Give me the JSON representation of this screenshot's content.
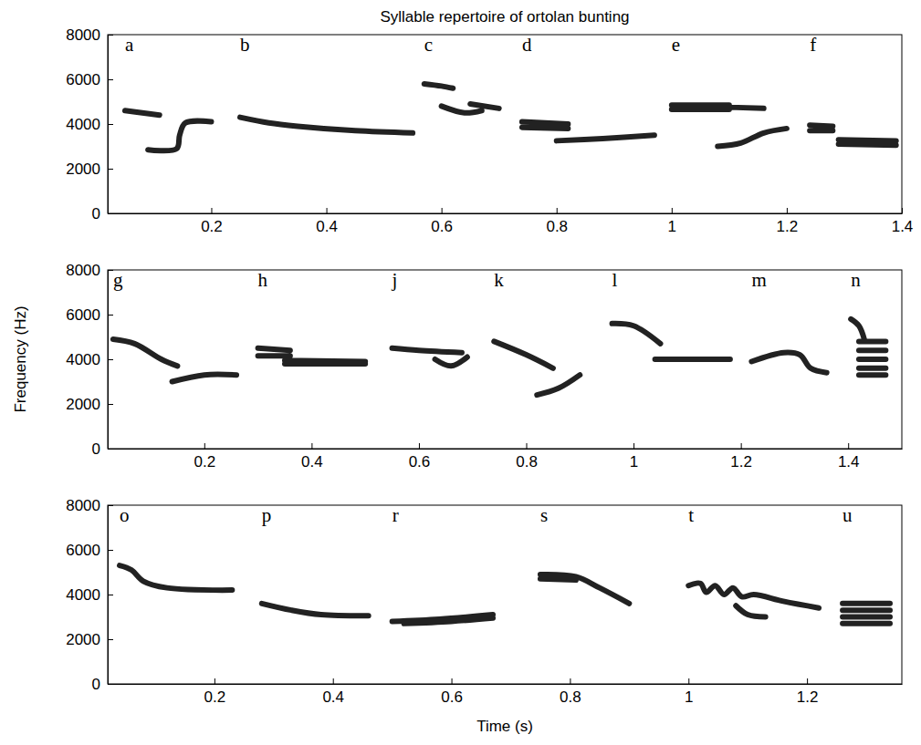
{
  "chart_data": [
    {
      "type": "line",
      "title": "Syllable repertoire of ortolan bunting",
      "color": "#222222",
      "xlim": [
        0.02,
        1.4
      ],
      "xticks": [
        0.2,
        0.4,
        0.6,
        0.8,
        1,
        1.2,
        1.4
      ],
      "ylim": [
        0,
        8000
      ],
      "yticks": [
        0,
        2000,
        4000,
        6000,
        8000
      ],
      "series": [
        {
          "name": "a",
          "x": [
            0.05,
            0.08,
            0.11,
            null,
            0.09,
            0.14,
            0.145,
            0.155,
            0.2
          ],
          "values": [
            4600,
            4500,
            4400,
            null,
            2850,
            2900,
            3500,
            4050,
            4100
          ]
        },
        {
          "name": "b",
          "x": [
            0.25,
            0.3,
            0.35,
            0.45,
            0.55
          ],
          "values": [
            4300,
            4050,
            3900,
            3700,
            3600
          ]
        },
        {
          "name": "c",
          "x": [
            0.57,
            0.6,
            0.62,
            null,
            0.6,
            0.64,
            0.67,
            null,
            0.65,
            0.7
          ],
          "values": [
            5800,
            5700,
            5600,
            null,
            4800,
            4500,
            4600,
            null,
            4900,
            4700
          ]
        },
        {
          "name": "d",
          "x": [
            0.74,
            0.82,
            null,
            0.74,
            0.82,
            null,
            0.8,
            0.88,
            0.97
          ],
          "values": [
            4100,
            4000,
            null,
            3850,
            3800,
            null,
            3250,
            3350,
            3500
          ]
        },
        {
          "name": "e",
          "x": [
            1.0,
            1.1,
            null,
            1.0,
            1.1,
            null,
            1.1,
            1.16,
            null,
            1.08,
            1.12,
            1.16,
            1.2
          ],
          "values": [
            4850,
            4850,
            null,
            4650,
            4650,
            null,
            4750,
            4700,
            null,
            3000,
            3150,
            3600,
            3800
          ]
        },
        {
          "name": "f",
          "x": [
            1.24,
            1.28,
            null,
            1.24,
            1.28,
            null,
            1.29,
            1.39,
            null,
            1.29,
            1.39
          ],
          "values": [
            3950,
            3900,
            null,
            3700,
            3700,
            null,
            3300,
            3250,
            null,
            3100,
            3050
          ]
        }
      ]
    },
    {
      "type": "line",
      "y_label": "Frequency (Hz)",
      "color": "#222222",
      "xlim": [
        0.02,
        1.5
      ],
      "xticks": [
        0.2,
        0.4,
        0.6,
        0.8,
        1,
        1.2,
        1.4
      ],
      "ylim": [
        0,
        8000
      ],
      "yticks": [
        0,
        2000,
        4000,
        6000,
        8000
      ],
      "series": [
        {
          "name": "g",
          "x": [
            0.03,
            0.07,
            0.12,
            0.15,
            null,
            0.14,
            0.2,
            0.26
          ],
          "values": [
            4900,
            4700,
            4000,
            3700,
            null,
            3000,
            3300,
            3300
          ]
        },
        {
          "name": "h",
          "x": [
            0.3,
            0.36,
            null,
            0.3,
            0.36,
            null,
            0.35,
            0.5,
            null,
            0.35,
            0.5
          ],
          "values": [
            4500,
            4400,
            null,
            4150,
            4150,
            null,
            3950,
            3900,
            null,
            3800,
            3800
          ]
        },
        {
          "name": "j",
          "x": [
            0.55,
            0.6,
            0.68,
            null,
            0.63,
            0.66,
            0.69
          ],
          "values": [
            4500,
            4400,
            4300,
            null,
            4000,
            3700,
            4100
          ]
        },
        {
          "name": "k",
          "x": [
            0.74,
            0.8,
            0.85,
            null,
            0.82,
            0.86,
            0.9
          ],
          "values": [
            4800,
            4200,
            3600,
            null,
            2400,
            2700,
            3300
          ]
        },
        {
          "name": "l",
          "x": [
            0.96,
            1.0,
            1.05,
            null,
            1.04,
            1.18
          ],
          "values": [
            5600,
            5500,
            4700,
            null,
            4000,
            4000
          ]
        },
        {
          "name": "m",
          "x": [
            1.22,
            1.28,
            1.31,
            1.33,
            1.36
          ],
          "values": [
            3900,
            4300,
            4200,
            3600,
            3400
          ]
        },
        {
          "name": "n",
          "x": [
            1.405,
            1.42,
            1.43,
            null,
            1.42,
            1.47,
            null,
            1.42,
            1.47,
            null,
            1.42,
            1.47,
            null,
            1.42,
            1.47,
            null,
            1.42,
            1.47
          ],
          "values": [
            5800,
            5500,
            4900,
            null,
            4800,
            4800,
            null,
            4400,
            4400,
            null,
            4000,
            4000,
            null,
            3600,
            3600,
            null,
            3300,
            3300
          ]
        }
      ]
    },
    {
      "type": "line",
      "x_label": "Time (s)",
      "color": "#222222",
      "xlim": [
        0.02,
        1.36
      ],
      "xticks": [
        0.2,
        0.4,
        0.6,
        0.8,
        1,
        1.2
      ],
      "ylim": [
        0,
        8000
      ],
      "yticks": [
        0,
        2000,
        4000,
        6000,
        8000
      ],
      "series": [
        {
          "name": "o",
          "x": [
            0.04,
            0.06,
            0.08,
            0.12,
            0.23
          ],
          "values": [
            5300,
            5100,
            4600,
            4300,
            4200
          ]
        },
        {
          "name": "p",
          "x": [
            0.28,
            0.33,
            0.38,
            0.46
          ],
          "values": [
            3600,
            3300,
            3100,
            3050
          ]
        },
        {
          "name": "r",
          "x": [
            0.5,
            0.58,
            0.67,
            null,
            0.52,
            0.6,
            0.67
          ],
          "values": [
            2800,
            2900,
            3100,
            null,
            2700,
            2800,
            2950
          ]
        },
        {
          "name": "s",
          "x": [
            0.75,
            0.81,
            0.85,
            0.9,
            null,
            0.75,
            0.81
          ],
          "values": [
            4900,
            4800,
            4300,
            3600,
            null,
            4700,
            4650
          ]
        },
        {
          "name": "t",
          "x": [
            1.0,
            1.02,
            1.03,
            1.045,
            1.06,
            1.075,
            1.09,
            1.11,
            1.16,
            1.22,
            null,
            1.08,
            1.1,
            1.13
          ],
          "values": [
            4400,
            4500,
            4100,
            4400,
            4000,
            4300,
            3900,
            4000,
            3700,
            3400,
            null,
            3500,
            3100,
            3000
          ]
        },
        {
          "name": "u",
          "x": [
            1.26,
            1.34,
            null,
            1.26,
            1.34,
            null,
            1.26,
            1.34,
            null,
            1.26,
            1.34
          ],
          "values": [
            2700,
            2700,
            null,
            3000,
            3000,
            null,
            3300,
            3300,
            null,
            3600,
            3600
          ]
        }
      ]
    }
  ]
}
